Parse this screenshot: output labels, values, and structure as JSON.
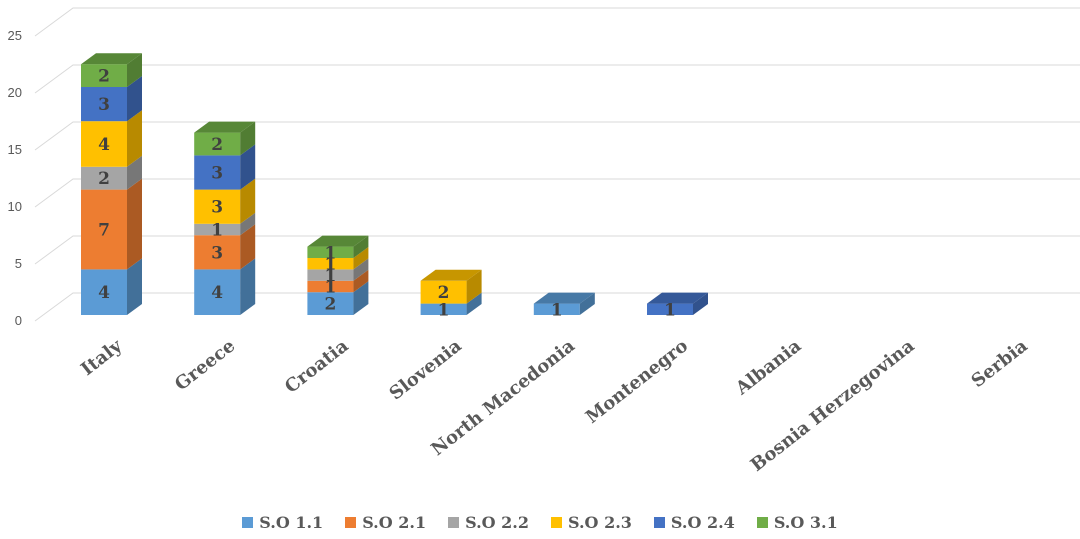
{
  "chart_data": {
    "type": "bar",
    "stacked": true,
    "three_d": true,
    "categories": [
      "Italy",
      "Greece",
      "Croatia",
      "Slovenia",
      "North Macedonia",
      "Montenegro",
      "Albania",
      "Bosnia Herzegovina",
      "Serbia"
    ],
    "series": [
      {
        "name": "S.O 1.1",
        "color": "#5b9bd5",
        "values": [
          4,
          4,
          2,
          1,
          1,
          0,
          0,
          0,
          0
        ]
      },
      {
        "name": "S.O 2.1",
        "color": "#ed7d31",
        "values": [
          7,
          3,
          1,
          0,
          0,
          0,
          0,
          0,
          0
        ]
      },
      {
        "name": "S.O 2.2",
        "color": "#a5a5a5",
        "values": [
          2,
          1,
          1,
          0,
          0,
          0,
          0,
          0,
          0
        ]
      },
      {
        "name": "S.O 2.3",
        "color": "#ffc000",
        "values": [
          4,
          3,
          1,
          2,
          0,
          0,
          0,
          0,
          0
        ]
      },
      {
        "name": "S.O 2.4",
        "color": "#4472c4",
        "values": [
          3,
          3,
          0,
          0,
          0,
          1,
          0,
          0,
          0
        ]
      },
      {
        "name": "S.O 3.1",
        "color": "#70ad47",
        "values": [
          2,
          2,
          1,
          0,
          0,
          0,
          0,
          0,
          0
        ]
      }
    ],
    "yticks": [
      0,
      5,
      10,
      15,
      20,
      25
    ],
    "ylim": [
      0,
      25
    ],
    "grid": true,
    "legend_position": "bottom"
  }
}
